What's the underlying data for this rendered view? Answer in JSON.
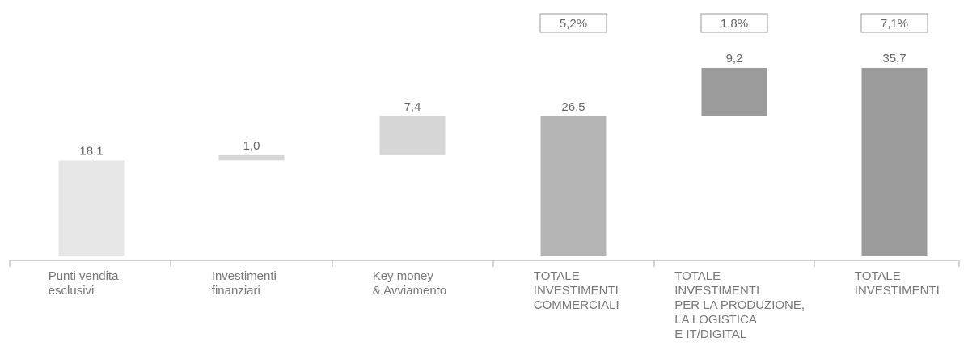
{
  "chart_data": {
    "type": "bar",
    "subtype": "waterfall",
    "categories": [
      [
        "Punti vendita",
        "esclusivi"
      ],
      [
        "Investimenti",
        "finanziari"
      ],
      [
        "Key money",
        "& Avviamento"
      ],
      [
        "TOTALE",
        "INVESTIMENTI",
        "COMMERCIALI"
      ],
      [
        "TOTALE",
        "INVESTIMENTI",
        "PER LA PRODUZIONE,",
        "LA LOGISTICA",
        "E IT/DIGITAL"
      ],
      [
        "TOTALE",
        "INVESTIMENTI"
      ]
    ],
    "values": [
      18.1,
      1.0,
      7.4,
      26.5,
      9.2,
      35.7
    ],
    "value_labels": [
      "18,1",
      "1,0",
      "7,4",
      "26,5",
      "9,2",
      "35,7"
    ],
    "bases": [
      0,
      18.1,
      19.1,
      0,
      26.5,
      0
    ],
    "percent_labels": [
      "",
      "",
      "",
      "5,2%",
      "1,8%",
      "7,1%"
    ],
    "colors": [
      "#e6e6e6",
      "#d6d6d6",
      "#d6d6d6",
      "#b4b4b4",
      "#9b9b9b",
      "#9b9b9b"
    ],
    "ylim": [
      0,
      35.7
    ]
  }
}
